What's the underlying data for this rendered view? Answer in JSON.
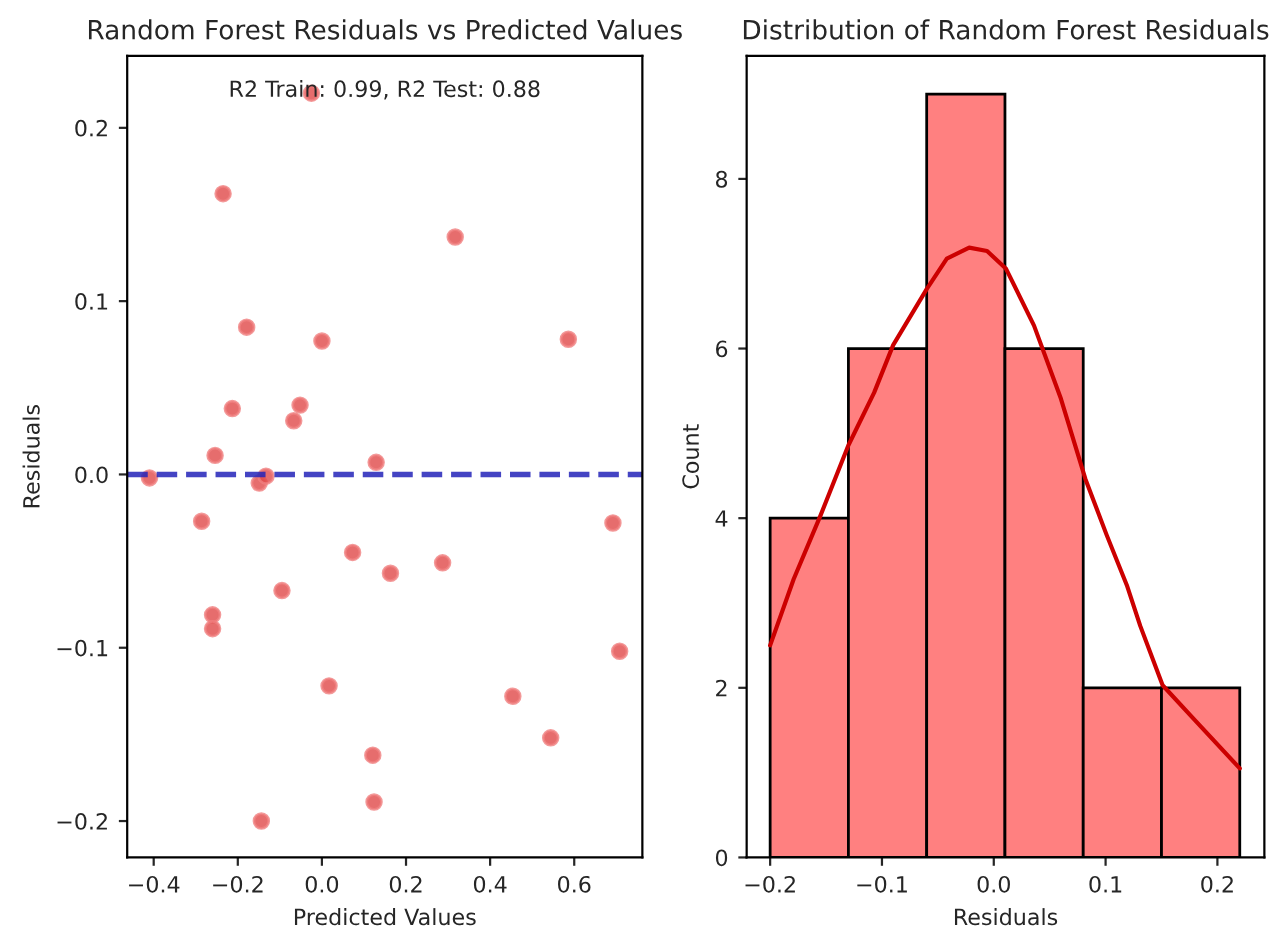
{
  "chart_data": [
    {
      "type": "scatter",
      "title": "Random Forest Residuals vs Predicted Values",
      "xlabel": "Predicted Values",
      "ylabel": "Residuals",
      "annotations": [
        "R2 Train: 0.99, R2 Test: 0.88"
      ],
      "series": [
        {
          "color": "#e04848",
          "x": [
            -0.41,
            -0.254,
            -0.149,
            -0.133,
            0.129,
            -0.286,
            0.073,
            0.163,
            0.287,
            -0.095,
            -0.26,
            -0.26,
            0.692,
            0.708,
            0.017,
            0.454,
            0.544,
            0.121,
            0.124,
            -0.144,
            -0.025,
            -0.235,
            0.317,
            -0.179,
            0.0,
            0.586,
            -0.213,
            -0.052,
            -0.067
          ],
          "values": [
            -0.002,
            0.011,
            -0.005,
            -0.001,
            0.007,
            -0.027,
            -0.045,
            -0.057,
            -0.051,
            -0.067,
            -0.081,
            -0.089,
            -0.028,
            -0.102,
            -0.122,
            -0.128,
            -0.152,
            -0.162,
            -0.189,
            -0.2,
            0.22,
            0.162,
            0.137,
            0.085,
            0.077,
            0.078,
            0.038,
            0.04,
            0.031
          ]
        }
      ],
      "marker": "circle",
      "ref_lines": [
        {
          "axis": "y",
          "value": 0,
          "color": "#2323b8",
          "line_style": "dashed"
        }
      ],
      "xlim": [
        -0.463,
        0.762
      ],
      "ylim": [
        -0.221,
        0.2415
      ],
      "xticks": [
        {
          "value": -0.4,
          "label": "−0.4"
        },
        {
          "value": -0.2,
          "label": "−0.2"
        },
        {
          "value": 0,
          "label": "0.0"
        },
        {
          "value": 0.2,
          "label": "0.2"
        },
        {
          "value": 0.4,
          "label": "0.4"
        },
        {
          "value": 0.6,
          "label": "0.6"
        }
      ],
      "yticks": [
        {
          "value": -0.2,
          "label": "−0.2"
        },
        {
          "value": -0.1,
          "label": "−0.1"
        },
        {
          "value": 0,
          "label": "0.0"
        },
        {
          "value": 0.1,
          "label": "0.1"
        },
        {
          "value": 0.2,
          "label": "0.2"
        }
      ],
      "grid": false,
      "legend": false
    },
    {
      "type": "histogram",
      "title": "Distribution of Random Forest Residuals",
      "xlabel": "Residuals",
      "ylabel": "Count",
      "series": [
        {
          "type": "histogram",
          "color": "#ff8080",
          "bins": [
            -0.2,
            -0.13,
            -0.06,
            0.01,
            0.08,
            0.15,
            0.22
          ],
          "values": [
            4,
            6,
            9,
            6,
            2,
            2
          ]
        },
        {
          "type": "line",
          "color": "#cc0000",
          "x": [
            -0.2,
            -0.179,
            -0.155,
            -0.13,
            -0.107,
            -0.09,
            -0.06,
            -0.042,
            -0.022,
            -0.006,
            0.011,
            0.036,
            0.06,
            0.082,
            0.101,
            0.119,
            0.131,
            0.151,
            0.179,
            0.22
          ],
          "values": [
            2.5,
            3.28,
            4.03,
            4.86,
            5.48,
            6.04,
            6.7,
            7.06,
            7.19,
            7.15,
            6.94,
            6.27,
            5.41,
            4.46,
            3.8,
            3.21,
            2.73,
            2.03,
            1.63,
            1.05
          ]
        }
      ],
      "marker": "none",
      "line_style": "solid",
      "xlim": [
        -0.221,
        0.242
      ],
      "ylim": [
        0,
        9.45
      ],
      "xticks": [
        {
          "value": -0.2,
          "label": "−0.2"
        },
        {
          "value": -0.1,
          "label": "−0.1"
        },
        {
          "value": 0,
          "label": "0.0"
        },
        {
          "value": 0.1,
          "label": "0.1"
        },
        {
          "value": 0.2,
          "label": "0.2"
        }
      ],
      "yticks": [
        0,
        2,
        4,
        6,
        8
      ],
      "grid": false,
      "legend": false
    }
  ]
}
